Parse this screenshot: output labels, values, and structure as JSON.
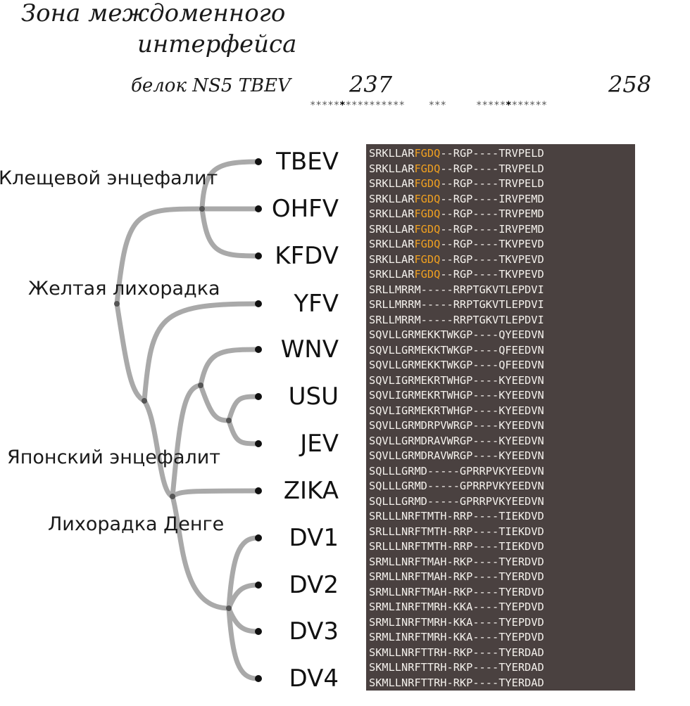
{
  "header": {
    "title_line1": "Зона междоменного",
    "title_line2": "интерфейса",
    "protein_label": "белок NS5 TBEV",
    "position_left": "237",
    "position_right": "258"
  },
  "groups": [
    "Клещевой энцефалит",
    "Желтая лихорадка",
    "Японский энцефалит",
    "Лихорадка Денге"
  ],
  "taxa": [
    "TBEV",
    "OHFV",
    "KFDV",
    "YFV",
    "WNV",
    "USU",
    "JEV",
    "ZIKA",
    "DV1",
    "DV2",
    "DV3",
    "DV4"
  ],
  "alignment": {
    "highlight_color": "#f0a020",
    "background_color": "#4a4140",
    "rows": [
      {
        "pre": "SRKLLAR",
        "hl": "FGDQ",
        "post": "--RGP----TRVPELD"
      },
      {
        "pre": "SRKLLAR",
        "hl": "FGDQ",
        "post": "--RGP----TRVPELD"
      },
      {
        "pre": "SRKLLAR",
        "hl": "FGDQ",
        "post": "--RGP----TRVPELD"
      },
      {
        "pre": "SRKLLAR",
        "hl": "FGDQ",
        "post": "--RGP----IRVPEMD"
      },
      {
        "pre": "SRKLLAR",
        "hl": "FGDQ",
        "post": "--RGP----TRVPEMD"
      },
      {
        "pre": "SRKLLAR",
        "hl": "FGDQ",
        "post": "--RGP----IRVPEMD"
      },
      {
        "pre": "SRKLLAR",
        "hl": "FGDQ",
        "post": "--RGP----TKVPEVD"
      },
      {
        "pre": "SRKLLAR",
        "hl": "FGDQ",
        "post": "--RGP----TKVPEVD"
      },
      {
        "pre": "SRKLLAR",
        "hl": "FGDQ",
        "post": "--RGP----TKVPEVD"
      },
      {
        "pre": "SRLLMRRM-----RRPTGKVTLEPDVI",
        "hl": "",
        "post": ""
      },
      {
        "pre": "SRLLMRRM-----RRPTGKVTLEPDVI",
        "hl": "",
        "post": ""
      },
      {
        "pre": "SRLLMRRM-----RRPTGKVTLEPDVI",
        "hl": "",
        "post": ""
      },
      {
        "pre": "SQVLLGRMEKKTWKGP----QYEEDVN",
        "hl": "",
        "post": ""
      },
      {
        "pre": "SQVLLGRMEKKTWKGP----QFEEDVN",
        "hl": "",
        "post": ""
      },
      {
        "pre": "SQVLLGRMEKKTWKGP----QFEEDVN",
        "hl": "",
        "post": ""
      },
      {
        "pre": "SQVLIGRMEKRTWHGP----KYEEDVN",
        "hl": "",
        "post": ""
      },
      {
        "pre": "SQVLIGRMEKRTWHGP----KYEEDVN",
        "hl": "",
        "post": ""
      },
      {
        "pre": "SQVLIGRMEKRTWHGP----KYEEDVN",
        "hl": "",
        "post": ""
      },
      {
        "pre": "SQVLLGRMDRPVWRGP----KYEEDVN",
        "hl": "",
        "post": ""
      },
      {
        "pre": "SQVLLGRMDRAVWRGP----KYEEDVN",
        "hl": "",
        "post": ""
      },
      {
        "pre": "SQVLLGRMDRAVWRGP----KYEEDVN",
        "hl": "",
        "post": ""
      },
      {
        "pre": "SQLLLGRMD-----GPRRPVKYEEDVN",
        "hl": "",
        "post": ""
      },
      {
        "pre": "SQLLLGRMD-----GPRRPVKYEEDVN",
        "hl": "",
        "post": ""
      },
      {
        "pre": "SQLLLGRMD-----GPRRPVKYEEDVN",
        "hl": "",
        "post": ""
      },
      {
        "pre": "SRLLLNRFTMTH-RRP----TIEKDVD",
        "hl": "",
        "post": ""
      },
      {
        "pre": "SRLLLNRFTMTH-RRP----TIEKDVD",
        "hl": "",
        "post": ""
      },
      {
        "pre": "SRLLLNRFTMTH-RRP----TIEKDVD",
        "hl": "",
        "post": ""
      },
      {
        "pre": "SRMLLNRFTMAH-RKP----TYERDVD",
        "hl": "",
        "post": ""
      },
      {
        "pre": "SRMLLNRFTMAH-RKP----TYERDVD",
        "hl": "",
        "post": ""
      },
      {
        "pre": "SRMLLNRFTMAH-RKP----TYERDVD",
        "hl": "",
        "post": ""
      },
      {
        "pre": "SRMLINRFTMRH-KKA----TYEPDVD",
        "hl": "",
        "post": ""
      },
      {
        "pre": "SRMLINRFTMRH-KKA----TYEPDVD",
        "hl": "",
        "post": ""
      },
      {
        "pre": "SRMLINRFTMRH-KKA----TYEPDVD",
        "hl": "",
        "post": ""
      },
      {
        "pre": "SKMLLNRFTTRH-RKP----TYERDAD",
        "hl": "",
        "post": ""
      },
      {
        "pre": "SKMLLNRFTTRH-RKP----TYERDAD",
        "hl": "",
        "post": ""
      },
      {
        "pre": "SKMLLNRFTTRH-RKP----TYERDAD",
        "hl": "",
        "post": ""
      }
    ]
  }
}
